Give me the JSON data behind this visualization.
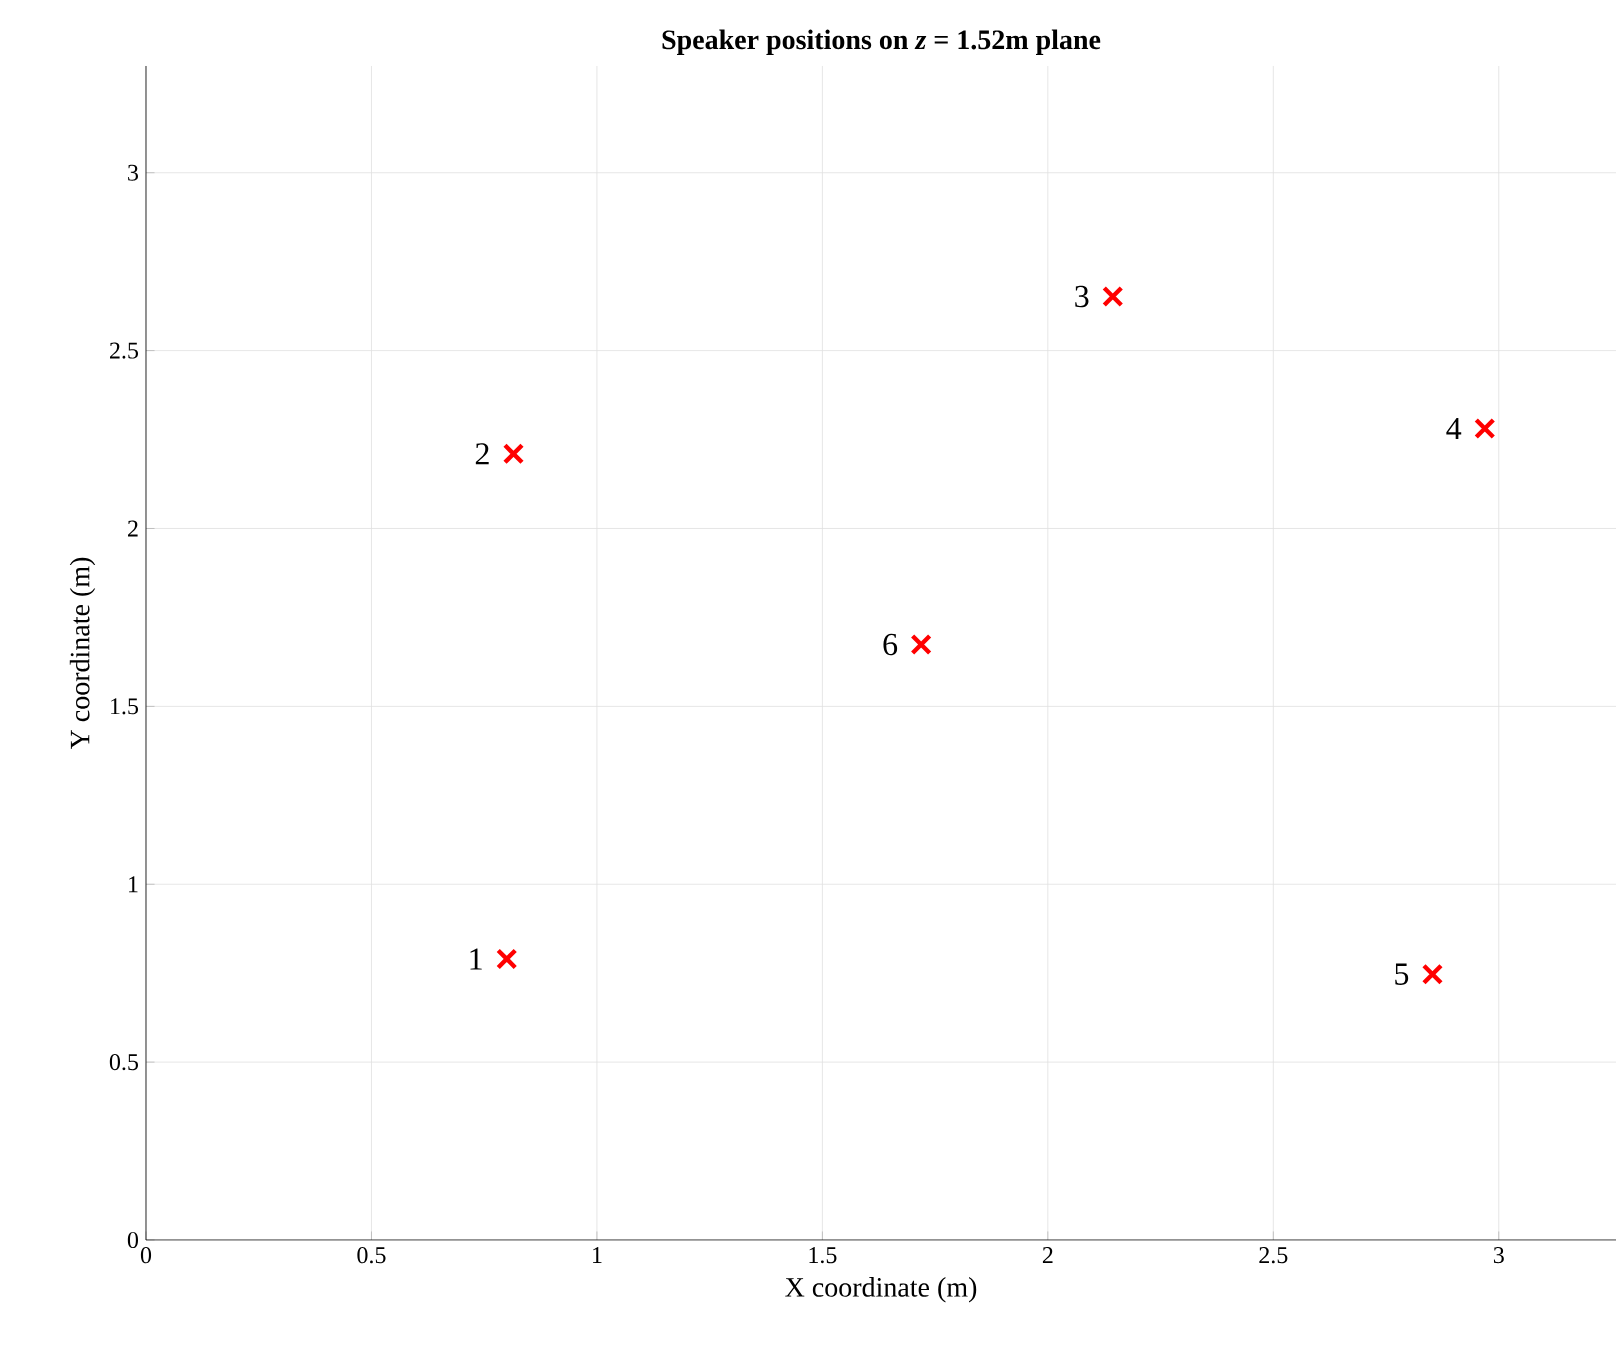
{
  "chart_data": {
    "type": "scatter",
    "title": "Speaker positions on *z* = 1.52m plane",
    "xlabel": "X coordinate (m)",
    "ylabel": "Y coordinate (m)",
    "x": [
      0.8,
      0.815,
      2.144,
      2.969,
      2.853,
      1.719
    ],
    "values": [
      0.79,
      2.21,
      2.652,
      2.281,
      0.747,
      1.674
    ],
    "color": "#ff0000",
    "marker": "cross",
    "grid": true,
    "xlim": [
      0,
      3.26
    ],
    "ylim": [
      0,
      3.3
    ],
    "xticks": [
      0,
      0.5,
      1,
      1.5,
      2,
      2.5,
      3
    ],
    "yticks": [
      0,
      0.5,
      1,
      1.5,
      2,
      2.5,
      3
    ],
    "annotations": [
      {
        "text": "1",
        "x": 0.8,
        "y": 0.79
      },
      {
        "text": "2",
        "x": 0.815,
        "y": 2.21
      },
      {
        "text": "3",
        "x": 2.144,
        "y": 2.652
      },
      {
        "text": "4",
        "x": 2.969,
        "y": 2.281
      },
      {
        "text": "5",
        "x": 2.853,
        "y": 0.747
      },
      {
        "text": "6",
        "x": 1.719,
        "y": 1.674
      }
    ]
  }
}
